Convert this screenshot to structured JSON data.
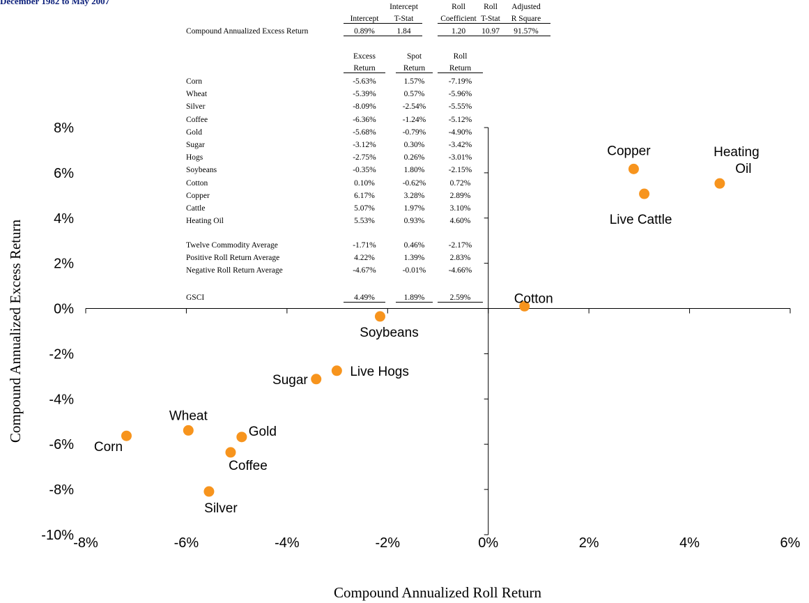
{
  "title": "December 1982 to May 2007",
  "regression_table": {
    "headers": [
      {
        "line1": "",
        "line2": "Intercept"
      },
      {
        "line1": "Intercept",
        "line2": "T-Stat"
      },
      {
        "line1": "Roll",
        "line2": "Coefficient"
      },
      {
        "line1": "Roll",
        "line2": "T-Stat"
      },
      {
        "line1": "Adjusted",
        "line2": "R Square"
      }
    ],
    "row_label": "Compound Annualized Excess Return",
    "values": [
      "0.89%",
      "1.84",
      "1.20",
      "10.97",
      "91.57%"
    ]
  },
  "returns_table": {
    "headers": [
      {
        "line1": "Excess",
        "line2": "Return"
      },
      {
        "line1": "Spot",
        "line2": "Return"
      },
      {
        "line1": "Roll",
        "line2": "Return"
      }
    ],
    "rows": [
      {
        "name": "Corn",
        "values": [
          "-5.63%",
          "1.57%",
          "-7.19%"
        ]
      },
      {
        "name": "Wheat",
        "values": [
          "-5.39%",
          "0.57%",
          "-5.96%"
        ]
      },
      {
        "name": "Silver",
        "values": [
          "-8.09%",
          "-2.54%",
          "-5.55%"
        ]
      },
      {
        "name": "Coffee",
        "values": [
          "-6.36%",
          "-1.24%",
          "-5.12%"
        ]
      },
      {
        "name": "Gold",
        "values": [
          "-5.68%",
          "-0.79%",
          "-4.90%"
        ]
      },
      {
        "name": "Sugar",
        "values": [
          "-3.12%",
          "0.30%",
          "-3.42%"
        ]
      },
      {
        "name": "Hogs",
        "values": [
          "-2.75%",
          "0.26%",
          "-3.01%"
        ]
      },
      {
        "name": "Soybeans",
        "values": [
          "-0.35%",
          "1.80%",
          "-2.15%"
        ]
      },
      {
        "name": "Cotton",
        "values": [
          "0.10%",
          "-0.62%",
          "0.72%"
        ]
      },
      {
        "name": "Copper",
        "values": [
          "6.17%",
          "3.28%",
          "2.89%"
        ]
      },
      {
        "name": "Cattle",
        "values": [
          "5.07%",
          "1.97%",
          "3.10%"
        ]
      },
      {
        "name": "Heating Oil",
        "values": [
          "5.53%",
          "0.93%",
          "4.60%"
        ]
      }
    ],
    "average_rows": [
      {
        "name": "Twelve Commodity Average",
        "values": [
          "-1.71%",
          "0.46%",
          "-2.17%"
        ]
      },
      {
        "name": "Positive Roll Return Average",
        "values": [
          "4.22%",
          "1.39%",
          "2.83%"
        ]
      },
      {
        "name": "Negative Roll Return Average",
        "values": [
          "-4.67%",
          "-0.01%",
          "-4.66%"
        ]
      }
    ],
    "index_row": {
      "name": "GSCI",
      "values": [
        "4.49%",
        "1.89%",
        "2.59%"
      ]
    }
  },
  "chart_data": {
    "type": "scatter",
    "title": "December 1982 to May 2007",
    "xlabel": "Compound Annualized Roll Return",
    "ylabel": "Compound Annualized Excess Return",
    "xlim": [
      -8,
      6
    ],
    "ylim": [
      -10,
      8
    ],
    "x_ticks": [
      "-8%",
      "-6%",
      "-4%",
      "-2%",
      "0%",
      "2%",
      "4%",
      "6%"
    ],
    "y_ticks": [
      "8%",
      "6%",
      "4%",
      "2%",
      "0%",
      "-2%",
      "-4%",
      "-6%",
      "-8%",
      "-10%"
    ],
    "grid": false,
    "marker_color": "#f7941d",
    "points": [
      {
        "label": "Corn",
        "x": -7.19,
        "y": -5.63
      },
      {
        "label": "Wheat",
        "x": -5.96,
        "y": -5.39
      },
      {
        "label": "Silver",
        "x": -5.55,
        "y": -8.09
      },
      {
        "label": "Coffee",
        "x": -5.12,
        "y": -6.36
      },
      {
        "label": "Gold",
        "x": -4.9,
        "y": -5.68
      },
      {
        "label": "Sugar",
        "x": -3.42,
        "y": -3.12
      },
      {
        "label": "Live Hogs",
        "x": -3.01,
        "y": -2.75
      },
      {
        "label": "Soybeans",
        "x": -2.15,
        "y": -0.35
      },
      {
        "label": "Cotton",
        "x": 0.72,
        "y": 0.1
      },
      {
        "label": "Copper",
        "x": 2.89,
        "y": 6.17
      },
      {
        "label": "Live Cattle",
        "x": 3.1,
        "y": 5.07
      },
      {
        "label": [
          "Heating",
          "Oil"
        ],
        "x": 4.6,
        "y": 5.53
      }
    ]
  }
}
